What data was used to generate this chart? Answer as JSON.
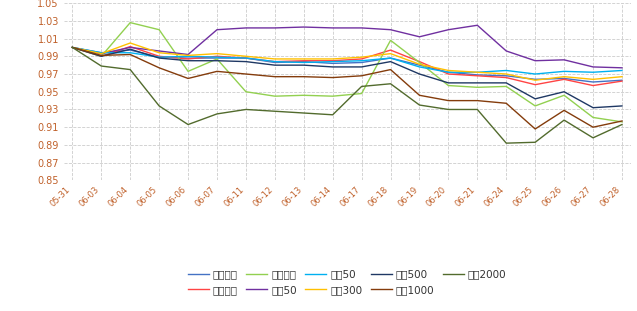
{
  "dates": [
    "05-31",
    "06-03",
    "06-04",
    "06-05",
    "06-06",
    "06-07",
    "06-11",
    "06-12",
    "06-13",
    "06-14",
    "06-17",
    "06-18",
    "06-19",
    "06-20",
    "06-21",
    "06-24",
    "06-25",
    "06-26",
    "06-27",
    "06-28"
  ],
  "series": {
    "上证指数": {
      "color": "#4472C4",
      "values": [
        1.0,
        0.994,
        0.997,
        0.989,
        0.988,
        0.988,
        0.988,
        0.983,
        0.984,
        0.982,
        0.983,
        0.988,
        0.98,
        0.972,
        0.969,
        0.968,
        0.964,
        0.965,
        0.961,
        0.963
      ]
    },
    "深证成指": {
      "color": "#FF4444",
      "values": [
        1.0,
        0.99,
        1.001,
        0.99,
        0.987,
        0.99,
        0.988,
        0.984,
        0.985,
        0.985,
        0.987,
        0.997,
        0.984,
        0.97,
        0.968,
        0.966,
        0.958,
        0.964,
        0.957,
        0.962
      ]
    },
    "创业板指": {
      "color": "#92D050",
      "values": [
        1.0,
        0.99,
        1.028,
        1.02,
        0.973,
        0.987,
        0.95,
        0.945,
        0.946,
        0.945,
        0.948,
        1.008,
        0.983,
        0.957,
        0.955,
        0.956,
        0.934,
        0.946,
        0.921,
        0.916
      ]
    },
    "科创50": {
      "color": "#7030A0",
      "values": [
        1.0,
        0.993,
        1.0,
        0.996,
        0.992,
        1.02,
        1.022,
        1.022,
        1.023,
        1.022,
        1.022,
        1.02,
        1.012,
        1.02,
        1.025,
        0.996,
        0.985,
        0.986,
        0.978,
        0.977
      ]
    },
    "上证50": {
      "color": "#00B0F0",
      "values": [
        1.0,
        0.994,
        0.994,
        0.989,
        0.99,
        0.989,
        0.988,
        0.984,
        0.983,
        0.984,
        0.985,
        0.988,
        0.978,
        0.972,
        0.972,
        0.974,
        0.97,
        0.973,
        0.972,
        0.974
      ]
    },
    "沪深300": {
      "color": "#FFC000",
      "values": [
        1.0,
        0.993,
        1.005,
        0.994,
        0.991,
        0.993,
        0.99,
        0.987,
        0.987,
        0.987,
        0.989,
        0.993,
        0.981,
        0.974,
        0.972,
        0.97,
        0.963,
        0.967,
        0.964,
        0.967
      ]
    },
    "中证500": {
      "color": "#1F3864",
      "values": [
        1.0,
        0.99,
        0.998,
        0.988,
        0.985,
        0.985,
        0.984,
        0.98,
        0.98,
        0.978,
        0.978,
        0.984,
        0.97,
        0.96,
        0.96,
        0.96,
        0.942,
        0.95,
        0.932,
        0.934
      ]
    },
    "中证1000": {
      "color": "#843C0C",
      "values": [
        1.0,
        0.991,
        0.992,
        0.977,
        0.965,
        0.973,
        0.97,
        0.967,
        0.967,
        0.966,
        0.968,
        0.975,
        0.946,
        0.94,
        0.94,
        0.937,
        0.908,
        0.929,
        0.91,
        0.917
      ]
    },
    "中证2000": {
      "color": "#526B2D",
      "values": [
        1.0,
        0.979,
        0.975,
        0.934,
        0.913,
        0.925,
        0.93,
        0.928,
        0.926,
        0.924,
        0.956,
        0.959,
        0.935,
        0.93,
        0.93,
        0.892,
        0.893,
        0.918,
        0.898,
        0.913
      ]
    }
  },
  "ylim": [
    0.85,
    1.05
  ],
  "yticks": [
    0.85,
    0.87,
    0.89,
    0.91,
    0.93,
    0.95,
    0.97,
    0.99,
    1.01,
    1.03,
    1.05
  ],
  "background_color": "#FFFFFF",
  "grid_color": "#CCCCCC",
  "axis_label_color": "#C0612B",
  "legend_order": [
    "上证指数",
    "深证成指",
    "创业板指",
    "科创50",
    "上证50",
    "沪深300",
    "中证500",
    "中证1000",
    "中证2000"
  ],
  "legend_row1": [
    "上证指数",
    "深证成指",
    "创业板指",
    "科创50",
    "上证50"
  ],
  "legend_row2": [
    "沪深300",
    "中证500",
    "中证1000",
    "中证2000"
  ]
}
